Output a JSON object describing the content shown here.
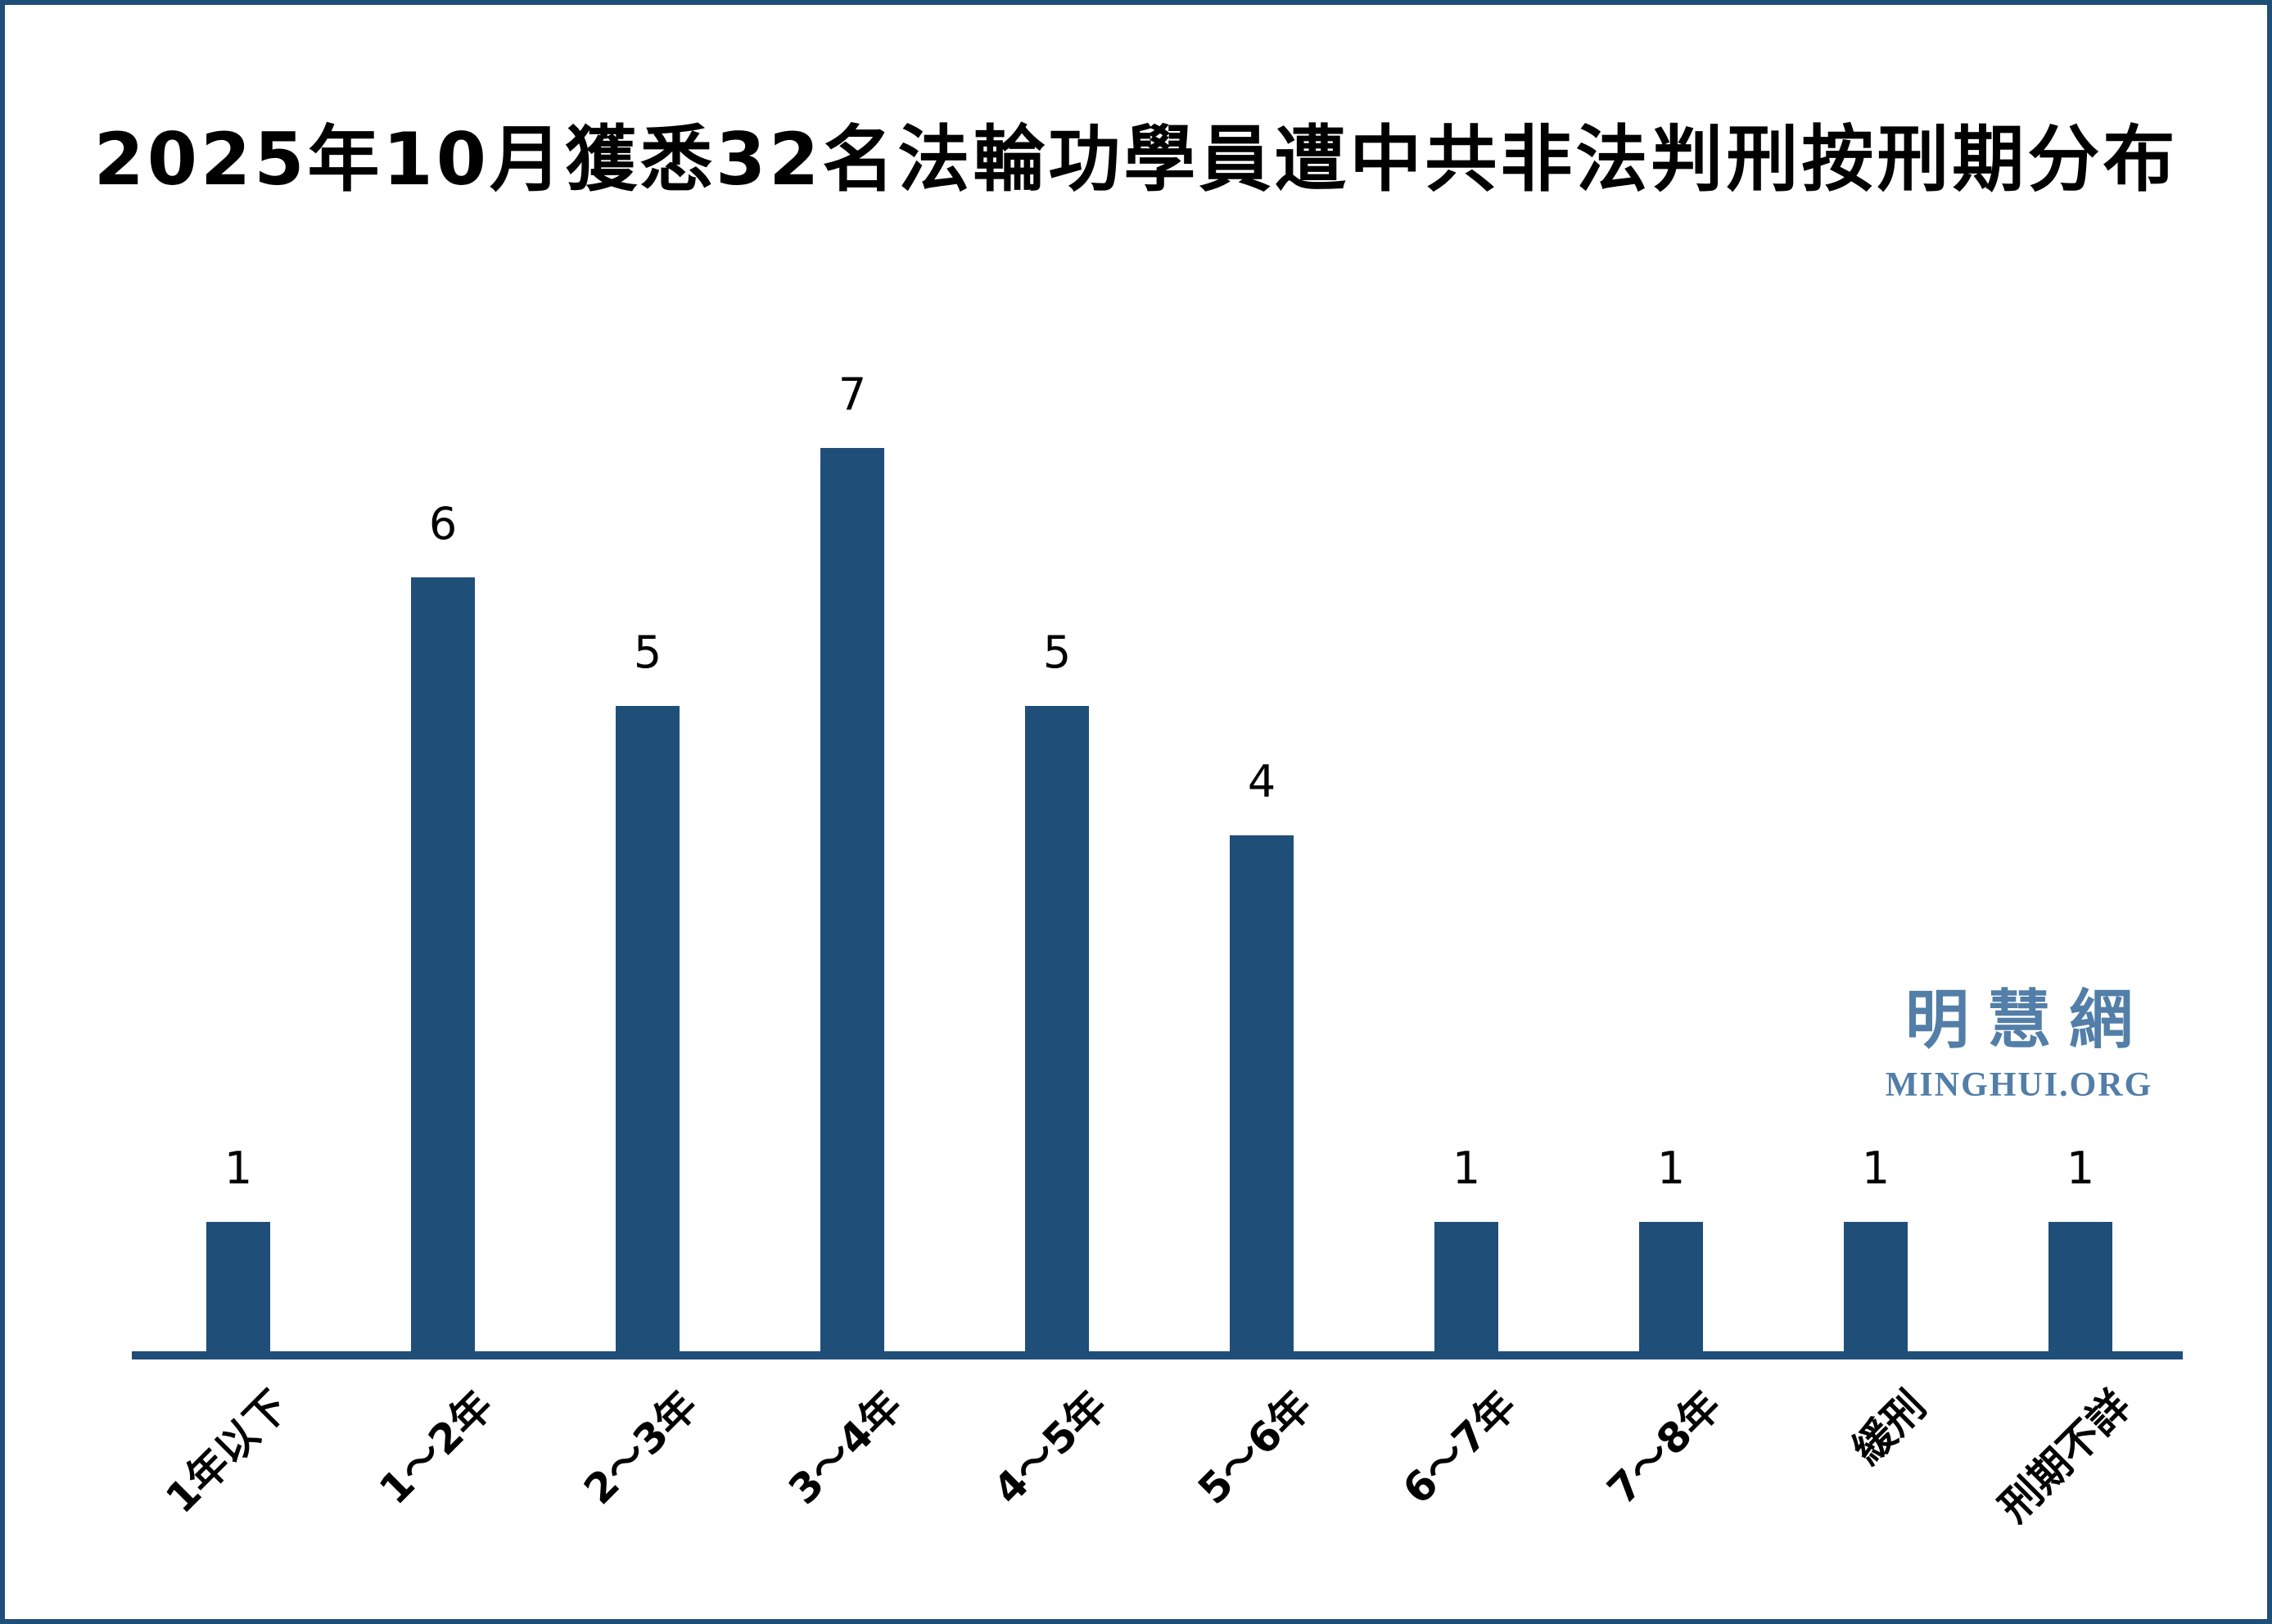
{
  "title": "2025年10月獲悉32名法輪功學員遭中共非法判刑按刑期分布",
  "watermark": {
    "cjk": "明慧網",
    "latin": "MINGHUI.ORG"
  },
  "colors": {
    "bar": "#1F4E79",
    "axis": "#1F4E79",
    "border": "#1F4E79",
    "watermark": "#527EA8",
    "title": "#000000"
  },
  "chart_data": {
    "type": "bar",
    "title": "2025年10月獲悉32名法輪功學員遭中共非法判刑按刑期分布",
    "categories": [
      "1年以下",
      "1～2年",
      "2～3年",
      "3～4年",
      "4～5年",
      "5～6年",
      "6～7年",
      "7～8年",
      "緩刑",
      "刑期不詳"
    ],
    "values": [
      1,
      6,
      5,
      7,
      5,
      4,
      1,
      1,
      1,
      1
    ],
    "total": 32,
    "xlabel": "",
    "ylabel": "",
    "ylim": [
      0,
      7
    ],
    "grid": false,
    "legend": null,
    "value_labels_shown": true,
    "x_tick_rotation_deg": 45,
    "bar_color": "#1F4E79"
  }
}
